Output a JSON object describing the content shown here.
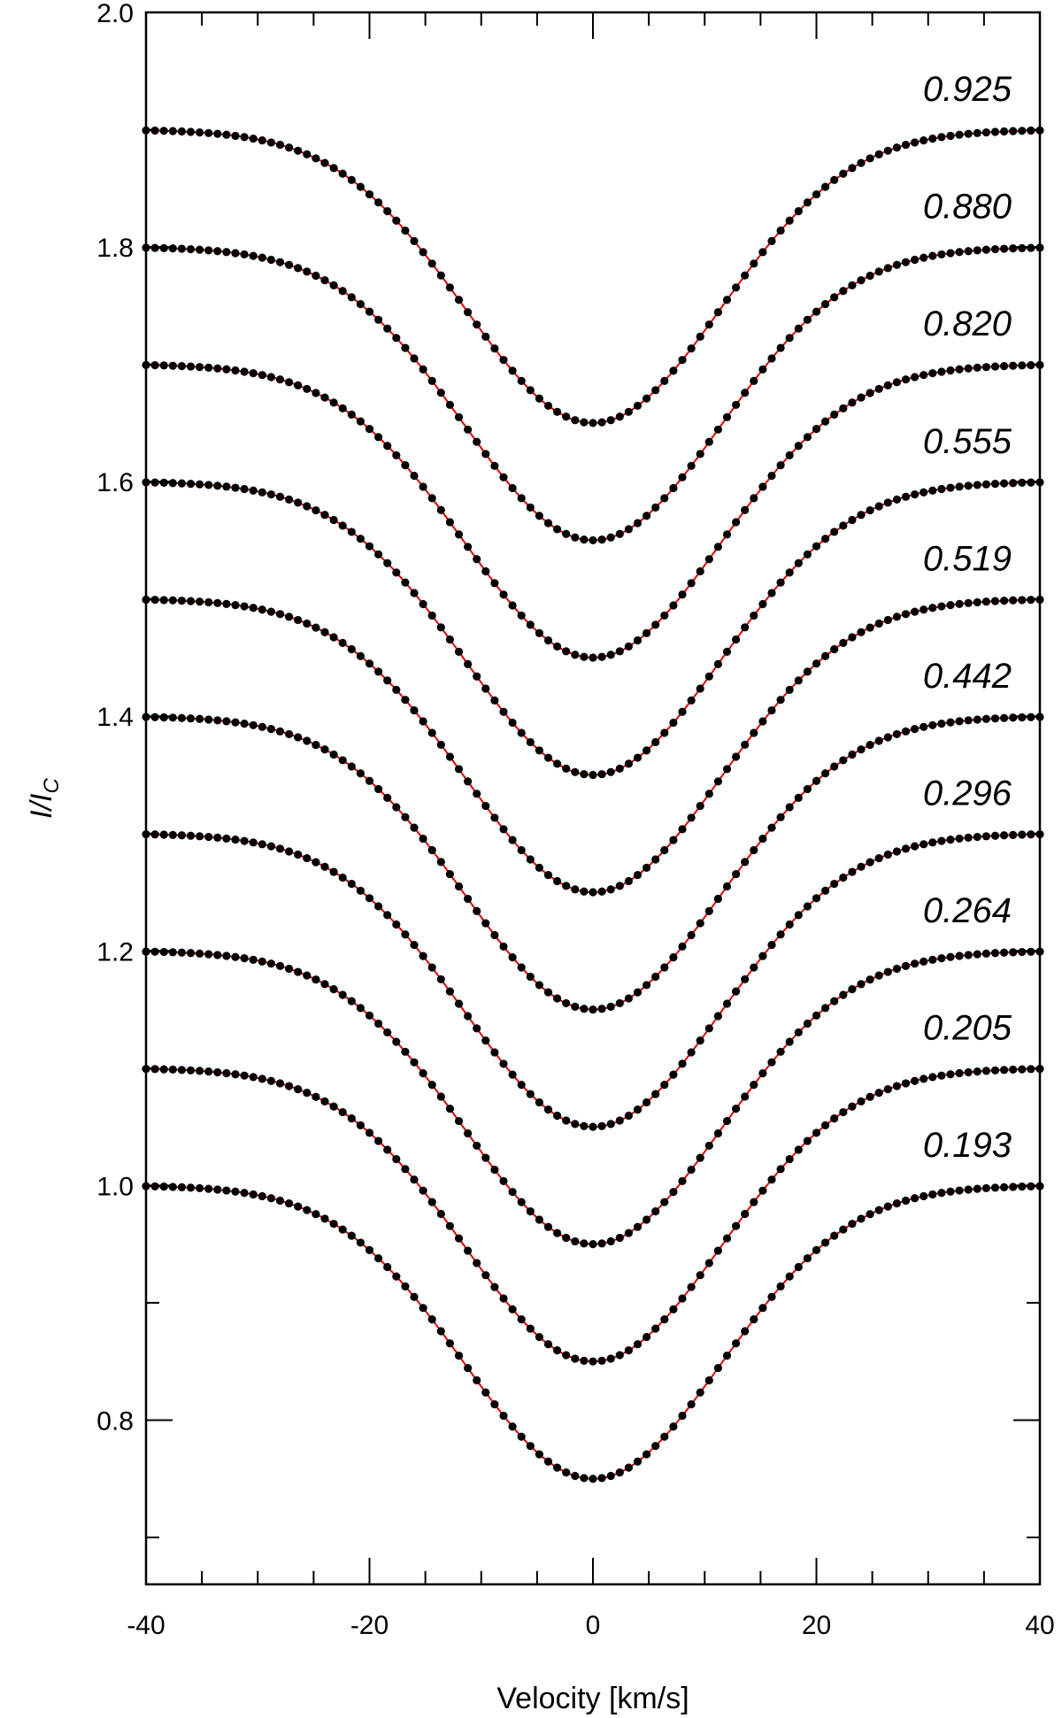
{
  "chart_data": {
    "type": "scatter",
    "xlabel": "Velocity [km/s]",
    "ylabel_main": "I/I",
    "ylabel_sub": "C",
    "xlim": [
      -40,
      40
    ],
    "ylim": [
      0.66,
      2.0
    ],
    "xticks": [
      -40,
      -20,
      0,
      20,
      40
    ],
    "xtick_labels": [
      "-40",
      "-20",
      "0",
      "20",
      "40"
    ],
    "yticks": [
      0.8,
      1.0,
      1.2,
      1.4,
      1.6,
      1.8,
      2.0
    ],
    "ytick_labels": [
      "0.8",
      "1.0",
      "1.2",
      "1.4",
      "1.6",
      "1.8",
      "2.0"
    ],
    "profile": {
      "depth": 0.25,
      "width_kms": 11.5,
      "velocity_step_kms": 0.8
    },
    "observed_color": "#000000",
    "model_color": "#e00000",
    "series": [
      {
        "phase": "0.925",
        "continuum": 1.9
      },
      {
        "phase": "0.880",
        "continuum": 1.8
      },
      {
        "phase": "0.820",
        "continuum": 1.7
      },
      {
        "phase": "0.555",
        "continuum": 1.6
      },
      {
        "phase": "0.519",
        "continuum": 1.5
      },
      {
        "phase": "0.442",
        "continuum": 1.4
      },
      {
        "phase": "0.296",
        "continuum": 1.3
      },
      {
        "phase": "0.264",
        "continuum": 1.2
      },
      {
        "phase": "0.205",
        "continuum": 1.1
      },
      {
        "phase": "0.193",
        "continuum": 1.0
      }
    ]
  }
}
